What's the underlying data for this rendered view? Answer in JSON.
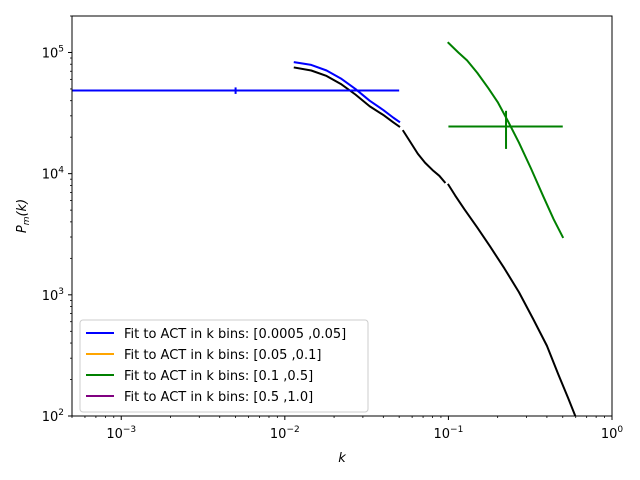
{
  "chart_data": {
    "type": "line",
    "xscale": "log",
    "yscale": "log",
    "xlim": [
      0.0005,
      1.0
    ],
    "ylim": [
      100,
      200000
    ],
    "xlabel": "k",
    "ylabel": "P_m(k)",
    "x_ticks": [
      {
        "value": 0.001,
        "base": "10",
        "exp": "−3"
      },
      {
        "value": 0.01,
        "base": "10",
        "exp": "−2"
      },
      {
        "value": 0.1,
        "base": "10",
        "exp": "−1"
      },
      {
        "value": 1,
        "base": "10",
        "exp": "0"
      }
    ],
    "y_ticks": [
      {
        "value": 100,
        "base": "10",
        "exp": "2"
      },
      {
        "value": 1000,
        "base": "10",
        "exp": "3"
      },
      {
        "value": 10000,
        "base": "10",
        "exp": "4"
      },
      {
        "value": 100000,
        "base": "10",
        "exp": "5"
      }
    ],
    "grid": false,
    "legend_position": "lower-left",
    "legend": [
      {
        "label": "Fit to ACT in k bins: [0.0005 ,0.05]",
        "color": "#0000ff"
      },
      {
        "label": "Fit to ACT in k bins: [0.05 ,0.1]",
        "color": "#ffa500"
      },
      {
        "label": "Fit to ACT in k bins: [0.1 ,0.5]",
        "color": "#008000"
      },
      {
        "label": "Fit to ACT in k bins: [0.5 ,1.0]",
        "color": "#800080"
      }
    ],
    "series": [
      {
        "color": "#000000",
        "segments": [
          {
            "x": [
              0.0115,
              0.0145,
              0.018,
              0.022,
              0.027,
              0.033,
              0.04,
              0.046,
              0.05
            ],
            "y": [
              75000,
              71000,
              64000,
              55000,
              45000,
              36000,
              30500,
              26500,
              24500
            ]
          },
          {
            "x": [
              0.053,
              0.058,
              0.065,
              0.072,
              0.08,
              0.088,
              0.095
            ],
            "y": [
              22500,
              18600,
              14600,
              12300,
              10700,
              9600,
              8500
            ]
          },
          {
            "x": [
              0.1,
              0.11,
              0.125,
              0.15,
              0.18,
              0.22,
              0.27,
              0.33,
              0.4,
              0.47,
              0.54,
              0.6
            ],
            "y": [
              8100,
              6600,
              5100,
              3600,
              2500,
              1650,
              1050,
              630,
              380,
              220,
              140,
              98
            ]
          }
        ]
      },
      {
        "name": "Fit to ACT in k bins: [0.0005 ,0.05]",
        "color": "#0000ff",
        "x": [
          0.0115,
          0.0145,
          0.018,
          0.022,
          0.027,
          0.033,
          0.04,
          0.046,
          0.05
        ],
        "y": [
          83000,
          79000,
          71000,
          61000,
          50000,
          40000,
          33500,
          29000,
          26800
        ],
        "fit_line": {
          "x": [
            0.0005,
            0.05
          ],
          "y": 48500
        },
        "marker": {
          "x": 0.005,
          "y": 48500,
          "y_err": [
            45500,
            51500
          ]
        }
      },
      {
        "name": "Fit to ACT in k bins: [0.1 ,0.5]",
        "color": "#008000",
        "x": [
          0.1,
          0.115,
          0.13,
          0.15,
          0.175,
          0.2,
          0.23,
          0.27,
          0.32,
          0.38,
          0.44,
          0.5
        ],
        "y": [
          120000,
          100000,
          86000,
          68000,
          51000,
          39000,
          27500,
          18000,
          11000,
          6500,
          4200,
          3000
        ],
        "fit_line": {
          "x": [
            0.1,
            0.5
          ],
          "y": 24500
        },
        "marker": {
          "x": 0.225,
          "y": 24500,
          "y_err": [
            16000,
            33000
          ]
        }
      }
    ]
  }
}
